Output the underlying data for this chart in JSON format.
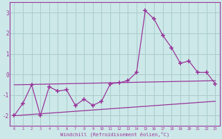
{
  "background_color": "#cce8e8",
  "grid_color": "#aacccc",
  "line_color": "#993399",
  "spine_color": "#993399",
  "x_values": [
    0,
    1,
    2,
    3,
    4,
    5,
    6,
    7,
    8,
    9,
    10,
    11,
    12,
    13,
    14,
    15,
    16,
    17,
    18,
    19,
    20,
    21,
    22,
    23
  ],
  "series1_y": [
    -2.0,
    -1.4,
    -0.5,
    -2.0,
    -0.6,
    -0.8,
    -0.75,
    -1.5,
    -1.2,
    -1.5,
    -1.3,
    -0.45,
    -0.4,
    -0.3,
    0.1,
    3.1,
    2.7,
    1.9,
    1.3,
    0.55,
    0.65,
    0.1,
    0.1,
    -0.45
  ],
  "series2_x": [
    0,
    23
  ],
  "series2_y": [
    -0.5,
    -0.3
  ],
  "series3_x": [
    0,
    23
  ],
  "series3_y": [
    -2.0,
    -1.3
  ],
  "xlabel": "Windchill (Refroidissement éolien,°C)",
  "xlim": [
    -0.5,
    23.5
  ],
  "ylim": [
    -2.5,
    3.5
  ],
  "yticks": [
    -2,
    -1,
    0,
    1,
    2,
    3
  ],
  "xticks": [
    0,
    1,
    2,
    3,
    4,
    5,
    6,
    7,
    8,
    9,
    10,
    11,
    12,
    13,
    14,
    15,
    16,
    17,
    18,
    19,
    20,
    21,
    22,
    23
  ]
}
